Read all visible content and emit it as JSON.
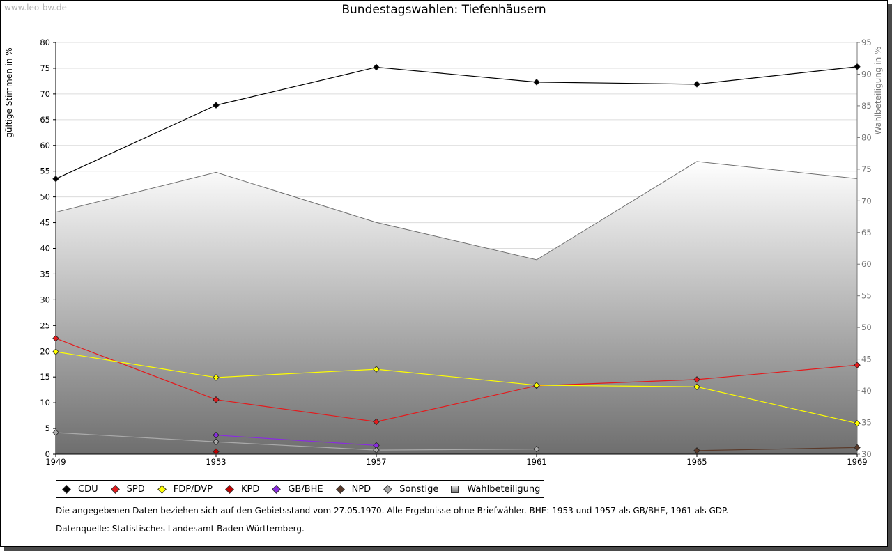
{
  "watermark": "www.leo-bw.de",
  "notes": {
    "line1": "Die angegebenen Daten beziehen sich auf den Gebietsstand vom 27.05.1970. Alle Ergebnisse ohne Briefwähler. BHE: 1953 und 1957 als GB/BHE, 1961 als GDP.",
    "line2": "Datenquelle: Statistisches Landesamt Baden-Württemberg."
  },
  "chart_data": {
    "type": "line",
    "title": "Bundestagswahlen: Tiefenhäusern",
    "ylabel": "gültige Stimmen in %",
    "y2label": "Wahlbeteiligung in %",
    "ylim": [
      0,
      80
    ],
    "y2lim": [
      30,
      95
    ],
    "yticks": [
      0,
      5,
      10,
      15,
      20,
      25,
      30,
      35,
      40,
      45,
      50,
      55,
      60,
      65,
      70,
      75,
      80
    ],
    "y2ticks": [
      30,
      35,
      40,
      45,
      50,
      55,
      60,
      65,
      70,
      75,
      80,
      85,
      90,
      95
    ],
    "x": [
      "1949",
      "1953",
      "1957",
      "1961",
      "1965",
      "1969"
    ],
    "series": [
      {
        "name": "CDU",
        "color": "#000000",
        "values": [
          53.5,
          67.8,
          75.2,
          72.3,
          71.9,
          75.3
        ]
      },
      {
        "name": "SPD",
        "color": "#e41a1c",
        "values": [
          22.5,
          10.6,
          6.3,
          13.3,
          14.5,
          17.3
        ]
      },
      {
        "name": "FDP/DVP",
        "color": "#ffff00",
        "values": [
          19.9,
          14.9,
          16.5,
          13.4,
          13.1,
          6.0
        ]
      },
      {
        "name": "KPD",
        "color": "#c00000",
        "values": [
          null,
          0.5,
          null,
          null,
          null,
          null
        ]
      },
      {
        "name": "GB/BHE",
        "color": "#8a2be2",
        "values": [
          null,
          3.7,
          1.7,
          null,
          null,
          null
        ]
      },
      {
        "name": "NPD",
        "color": "#5a3a2a",
        "values": [
          null,
          null,
          null,
          null,
          0.7,
          1.3
        ]
      },
      {
        "name": "Sonstige",
        "color": "#aaaaaa",
        "values": [
          4.2,
          2.4,
          0.8,
          1.0,
          null,
          null
        ]
      }
    ],
    "turnout": {
      "name": "Wahlbeteiligung",
      "axis": "right",
      "values": [
        68.2,
        74.5,
        66.6,
        60.7,
        76.2,
        73.5
      ]
    },
    "legend": [
      "CDU",
      "SPD",
      "FDP/DVP",
      "KPD",
      "GB/BHE",
      "NPD",
      "Sonstige",
      "Wahlbeteiligung"
    ]
  }
}
